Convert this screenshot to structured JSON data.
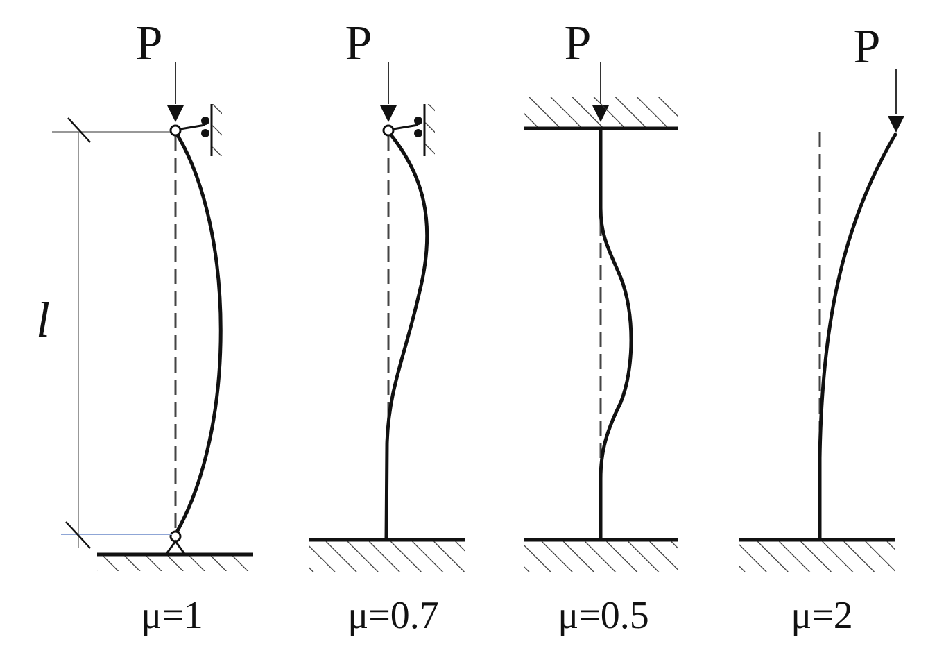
{
  "columns": [
    {
      "load": "P",
      "factor": "μ=1"
    },
    {
      "load": "P",
      "factor": "μ=0.7"
    },
    {
      "load": "P",
      "factor": "μ=0.5"
    },
    {
      "load": "P",
      "factor": "μ=2"
    }
  ],
  "length_label": "l"
}
